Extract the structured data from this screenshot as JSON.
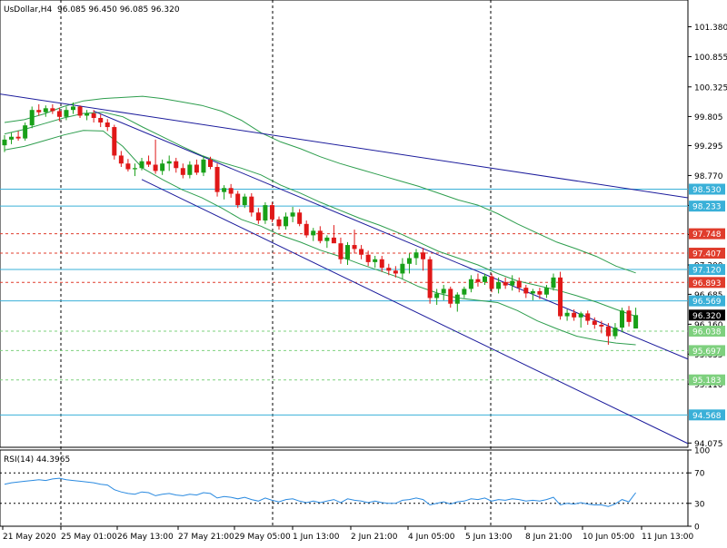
{
  "header": {
    "symbol": "UsDollar,H4",
    "ohlc": "96.085 96.450 96.085 96.320"
  },
  "rsi_label": "RSI(14) 44.3965",
  "colors": {
    "bull": "#18a018",
    "bear": "#e01818",
    "bollinger": "#2e9e4e",
    "trendline": "#1c1c9c",
    "level_blue": "#3ab0d8",
    "level_red": "#e03c2c",
    "level_green": "#7ed07e",
    "rsi_line": "#2a8ae0",
    "current_price_bg": "#000000"
  },
  "chart_data": [
    {
      "type": "candlestick",
      "title": "UsDollar,H4",
      "ylim": [
        94.0,
        101.85
      ],
      "y_ticks": [
        "101.380",
        "100.855",
        "100.325",
        "99.805",
        "99.295",
        "98.770",
        "98.245",
        "97.735",
        "97.200",
        "96.685",
        "96.160",
        "95.635",
        "95.110",
        "94.075"
      ],
      "x_ticks": [
        "21 May 2020",
        "25 May 01:00",
        "26 May 13:00",
        "27 May 21:00",
        "29 May 05:00",
        "1 Jun 13:00",
        "2 Jun 21:00",
        "4 Jun 05:00",
        "5 Jun 13:00",
        "8 Jun 21:00",
        "10 Jun 05:00",
        "11 Jun 13:00"
      ],
      "candles": [
        [
          99.3,
          99.48,
          99.18,
          99.4
        ],
        [
          99.4,
          99.52,
          99.32,
          99.45
        ],
        [
          99.45,
          99.55,
          99.38,
          99.42
        ],
        [
          99.42,
          99.7,
          99.38,
          99.65
        ],
        [
          99.65,
          99.98,
          99.6,
          99.92
        ],
        [
          99.92,
          100.02,
          99.82,
          99.88
        ],
        [
          99.88,
          100.0,
          99.8,
          99.95
        ],
        [
          99.95,
          100.02,
          99.85,
          99.9
        ],
        [
          99.9,
          99.96,
          99.72,
          99.8
        ],
        [
          99.8,
          99.98,
          99.74,
          99.92
        ],
        [
          99.92,
          100.05,
          99.85,
          99.98
        ],
        [
          99.98,
          100.0,
          99.78,
          99.82
        ],
        [
          99.82,
          99.92,
          99.74,
          99.86
        ],
        [
          99.86,
          99.92,
          99.7,
          99.78
        ],
        [
          99.78,
          99.84,
          99.62,
          99.7
        ],
        [
          99.7,
          99.76,
          99.55,
          99.62
        ],
        [
          99.62,
          99.66,
          99.05,
          99.12
        ],
        [
          99.12,
          99.2,
          98.92,
          98.98
        ],
        [
          98.98,
          99.06,
          98.84,
          98.88
        ],
        [
          98.88,
          98.98,
          98.76,
          98.9
        ],
        [
          98.9,
          99.08,
          98.86,
          99.02
        ],
        [
          99.02,
          99.12,
          98.92,
          98.96
        ],
        [
          98.96,
          99.4,
          98.8,
          98.85
        ],
        [
          98.85,
          99.05,
          98.78,
          98.98
        ],
        [
          98.98,
          99.12,
          98.85,
          99.02
        ],
        [
          99.02,
          99.08,
          98.82,
          98.9
        ],
        [
          98.9,
          98.98,
          98.72,
          98.78
        ],
        [
          98.78,
          99.02,
          98.72,
          98.96
        ],
        [
          98.96,
          99.05,
          98.78,
          98.82
        ],
        [
          98.82,
          99.12,
          98.76,
          99.05
        ],
        [
          99.05,
          99.1,
          98.88,
          98.92
        ],
        [
          98.92,
          98.98,
          98.4,
          98.48
        ],
        [
          98.48,
          98.6,
          98.35,
          98.55
        ],
        [
          98.55,
          98.62,
          98.38,
          98.45
        ],
        [
          98.45,
          98.5,
          98.2,
          98.25
        ],
        [
          98.25,
          98.45,
          98.2,
          98.4
        ],
        [
          98.4,
          98.46,
          98.05,
          98.12
        ],
        [
          98.12,
          98.2,
          97.92,
          97.98
        ],
        [
          97.98,
          98.3,
          97.92,
          98.25
        ],
        [
          98.25,
          98.3,
          97.95,
          98.0
        ],
        [
          98.0,
          98.05,
          97.82,
          97.88
        ],
        [
          97.88,
          98.12,
          97.82,
          98.05
        ],
        [
          98.05,
          98.22,
          97.95,
          98.12
        ],
        [
          98.12,
          98.18,
          97.88,
          97.92
        ],
        [
          97.92,
          97.98,
          97.68,
          97.72
        ],
        [
          97.72,
          97.85,
          97.62,
          97.8
        ],
        [
          97.8,
          97.88,
          97.58,
          97.62
        ],
        [
          97.62,
          97.72,
          97.5,
          97.68
        ],
        [
          97.68,
          97.9,
          97.6,
          97.58
        ],
        [
          97.58,
          97.68,
          97.22,
          97.3
        ],
        [
          97.3,
          97.6,
          97.2,
          97.55
        ],
        [
          97.55,
          97.82,
          97.4,
          97.48
        ],
        [
          97.48,
          97.55,
          97.3,
          97.38
        ],
        [
          97.38,
          97.45,
          97.18,
          97.25
        ],
        [
          97.25,
          97.36,
          97.15,
          97.3
        ],
        [
          97.3,
          97.36,
          97.08,
          97.15
        ],
        [
          97.15,
          97.22,
          97.02,
          97.1
        ],
        [
          97.1,
          97.18,
          96.98,
          97.05
        ],
        [
          97.05,
          97.32,
          96.95,
          97.22
        ],
        [
          97.22,
          97.4,
          97.05,
          97.32
        ],
        [
          97.32,
          97.48,
          97.2,
          97.42
        ],
        [
          97.42,
          97.5,
          97.1,
          97.3
        ],
        [
          97.3,
          97.35,
          96.52,
          96.62
        ],
        [
          96.62,
          96.78,
          96.5,
          96.7
        ],
        [
          96.7,
          96.85,
          96.58,
          96.78
        ],
        [
          96.78,
          96.82,
          96.45,
          96.52
        ],
        [
          96.52,
          96.72,
          96.38,
          96.68
        ],
        [
          96.68,
          96.82,
          96.62,
          96.78
        ],
        [
          96.78,
          97.02,
          96.72,
          96.95
        ],
        [
          96.95,
          97.05,
          96.82,
          96.9
        ],
        [
          96.9,
          97.05,
          96.85,
          97.0
        ],
        [
          97.0,
          97.05,
          96.72,
          96.78
        ],
        [
          96.78,
          96.98,
          96.7,
          96.9
        ],
        [
          96.9,
          96.98,
          96.78,
          96.84
        ],
        [
          96.84,
          97.02,
          96.75,
          96.92
        ],
        [
          96.92,
          96.98,
          96.72,
          96.8
        ],
        [
          96.8,
          96.85,
          96.62,
          96.7
        ],
        [
          96.7,
          96.78,
          96.58,
          96.74
        ],
        [
          96.74,
          96.8,
          96.6,
          96.68
        ],
        [
          96.68,
          96.85,
          96.62,
          96.8
        ],
        [
          96.8,
          97.05,
          96.75,
          96.98
        ],
        [
          96.98,
          97.08,
          96.24,
          96.3
        ],
        [
          96.3,
          96.42,
          96.22,
          96.36
        ],
        [
          96.36,
          96.42,
          96.22,
          96.28
        ],
        [
          96.28,
          96.38,
          96.1,
          96.35
        ],
        [
          96.35,
          96.4,
          96.15,
          96.22
        ],
        [
          96.22,
          96.28,
          96.08,
          96.15
        ],
        [
          96.15,
          96.22,
          96.0,
          96.12
        ],
        [
          96.12,
          96.18,
          95.8,
          95.95
        ],
        [
          95.95,
          96.18,
          95.9,
          96.1
        ],
        [
          96.1,
          96.45,
          96.02,
          96.4
        ],
        [
          96.4,
          96.48,
          96.12,
          96.2
        ],
        [
          96.085,
          96.45,
          96.085,
          96.32
        ]
      ],
      "bollinger": {
        "upper": [
          99.7,
          99.75,
          99.85,
          99.98,
          100.08,
          100.12,
          100.14,
          100.16,
          100.12,
          100.06,
          100.0,
          99.9,
          99.74,
          99.52,
          99.36,
          99.24,
          99.1,
          98.98,
          98.88,
          98.78,
          98.68,
          98.58,
          98.46,
          98.34,
          98.25,
          98.1,
          97.92,
          97.76,
          97.6,
          97.48,
          97.35,
          97.18,
          97.06
        ],
        "middle": [
          99.5,
          99.58,
          99.68,
          99.78,
          99.86,
          99.88,
          99.8,
          99.62,
          99.45,
          99.28,
          99.12,
          99.0,
          98.9,
          98.78,
          98.6,
          98.46,
          98.3,
          98.16,
          98.02,
          97.9,
          97.76,
          97.6,
          97.44,
          97.32,
          97.2,
          97.05,
          96.92,
          96.84,
          96.76,
          96.66,
          96.55,
          96.42,
          96.3
        ],
        "lower": [
          99.22,
          99.28,
          99.38,
          99.48,
          99.56,
          99.55,
          99.28,
          98.9,
          98.7,
          98.52,
          98.38,
          98.2,
          98.0,
          97.88,
          97.72,
          97.6,
          97.46,
          97.35,
          97.22,
          97.1,
          96.98,
          96.82,
          96.7,
          96.62,
          96.58,
          96.54,
          96.4,
          96.22,
          96.08,
          95.95,
          95.88,
          95.83,
          95.8
        ]
      },
      "trendlines": [
        {
          "from": [
            0,
            100.2
          ],
          "to": [
            93,
            98.5
          ]
        },
        {
          "from": [
            13,
            99.9
          ],
          "to": [
            93,
            95.88
          ]
        },
        {
          "from": [
            20,
            98.7
          ],
          "to": [
            93,
            94.45
          ]
        }
      ],
      "levels": [
        {
          "value": 98.53,
          "label": "98.530",
          "style": "solid",
          "color": "blue"
        },
        {
          "value": 98.233,
          "label": "98.233",
          "style": "solid",
          "color": "blue"
        },
        {
          "value": 97.748,
          "label": "97.748",
          "style": "dashed",
          "color": "red"
        },
        {
          "value": 97.407,
          "label": "97.407",
          "style": "dashed",
          "color": "red"
        },
        {
          "value": 97.12,
          "label": "97.120",
          "style": "solid",
          "color": "blue"
        },
        {
          "value": 96.893,
          "label": "96.893",
          "style": "dashed",
          "color": "red"
        },
        {
          "value": 96.569,
          "label": "96.569",
          "style": "solid",
          "color": "blue"
        },
        {
          "value": 96.038,
          "label": "96.038",
          "style": "dashed",
          "color": "green"
        },
        {
          "value": 95.697,
          "label": "95.697",
          "style": "dashed",
          "color": "green"
        },
        {
          "value": 95.183,
          "label": "95.183",
          "style": "dashed",
          "color": "green"
        },
        {
          "value": 94.568,
          "label": "94.568",
          "style": "solid",
          "color": "blue"
        }
      ],
      "current_price": "96.320"
    },
    {
      "type": "line",
      "title": "RSI(14) 44.3965",
      "ylim": [
        0,
        100
      ],
      "y_ticks": [
        "100",
        "70",
        "30",
        "0"
      ],
      "levels": [
        70,
        30
      ],
      "values": [
        55,
        57,
        58,
        59,
        60,
        61,
        60,
        62,
        63,
        61,
        60,
        59,
        58,
        57,
        55,
        54,
        48,
        45,
        43,
        42,
        45,
        44,
        40,
        42,
        43,
        41,
        40,
        42,
        41,
        44,
        43,
        37,
        39,
        38,
        36,
        38,
        35,
        33,
        37,
        34,
        32,
        35,
        36,
        33,
        31,
        33,
        31,
        33,
        35,
        31,
        36,
        34,
        33,
        31,
        33,
        31,
        30,
        30,
        34,
        35,
        37,
        35,
        28,
        30,
        32,
        29,
        32,
        33,
        36,
        35,
        37,
        33,
        35,
        34,
        36,
        35,
        33,
        34,
        33,
        35,
        38,
        28,
        30,
        29,
        31,
        29,
        28,
        28,
        26,
        29,
        35,
        32,
        44
      ]
    }
  ]
}
